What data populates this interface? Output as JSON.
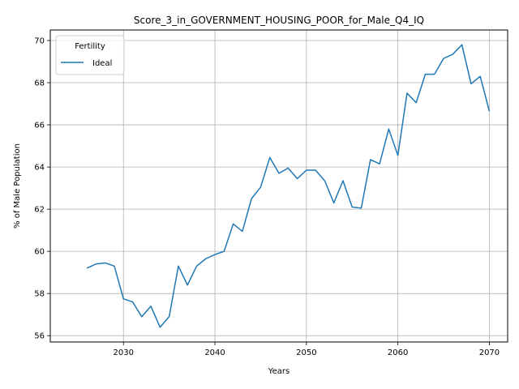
{
  "chart_data": {
    "type": "line",
    "title": "Score_3_in_GOVERNMENT_HOUSING_POOR_for_Male_Q4_IQ",
    "xlabel": "Years",
    "ylabel": "% of Male Population",
    "xlim": [
      2022,
      2072
    ],
    "ylim": [
      55.7,
      70.5
    ],
    "xticks": [
      2030,
      2040,
      2050,
      2060,
      2070
    ],
    "yticks": [
      56,
      58,
      60,
      62,
      64,
      66,
      68,
      70
    ],
    "grid": true,
    "legend": {
      "title": "Fertility",
      "placement": "top-left"
    },
    "x": [
      2026,
      2027,
      2028,
      2029,
      2030,
      2031,
      2032,
      2033,
      2034,
      2035,
      2036,
      2037,
      2038,
      2039,
      2040,
      2041,
      2042,
      2043,
      2044,
      2045,
      2046,
      2047,
      2048,
      2049,
      2050,
      2051,
      2052,
      2053,
      2054,
      2055,
      2056,
      2057,
      2058,
      2059,
      2060,
      2061,
      2062,
      2063,
      2064,
      2065,
      2066,
      2067,
      2068,
      2069,
      2070
    ],
    "series": [
      {
        "name": "Ideal",
        "color": "#1f77b4",
        "values": [
          59.2,
          59.4,
          59.45,
          59.3,
          57.75,
          57.6,
          56.9,
          57.4,
          56.4,
          56.9,
          59.3,
          58.4,
          59.3,
          59.65,
          59.85,
          60.0,
          61.3,
          60.95,
          62.5,
          63.05,
          64.45,
          63.7,
          63.95,
          63.45,
          63.85,
          63.85,
          63.35,
          62.3,
          63.35,
          62.1,
          62.05,
          64.35,
          64.15,
          65.8,
          64.55,
          67.5,
          67.05,
          68.4,
          68.4,
          69.15,
          69.35,
          69.8,
          67.95,
          68.3,
          66.65
        ]
      }
    ]
  }
}
